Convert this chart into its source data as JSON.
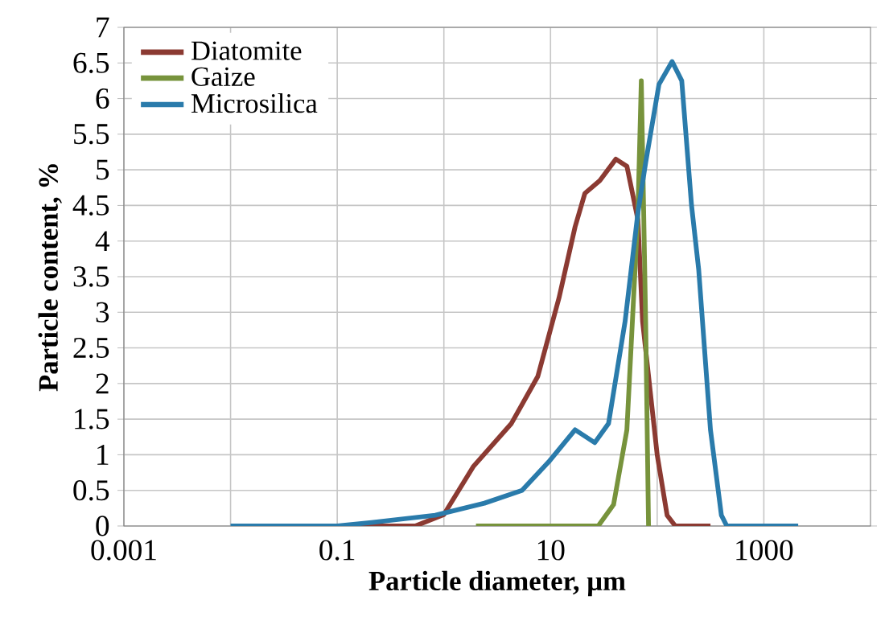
{
  "chart_data": {
    "type": "line",
    "xlabel": "Particle diameter, µm",
    "ylabel": "Particle content, %",
    "log": "x",
    "grid": true,
    "legend": "top left",
    "marker": "none",
    "line_style": "solid",
    "xlim": [
      0.001,
      10000
    ],
    "ylim": [
      0,
      7
    ],
    "xticks": [
      {
        "value": 0.001,
        "label": "0.001"
      },
      {
        "value": 0.01,
        "label": null
      },
      {
        "value": 0.1,
        "label": "0.1"
      },
      {
        "value": 1,
        "label": null
      },
      {
        "value": 10,
        "label": "10"
      },
      {
        "value": 100,
        "label": null
      },
      {
        "value": 1000,
        "label": "1000"
      }
    ],
    "yticks": [
      0,
      0.5,
      1,
      1.5,
      2,
      2.5,
      3,
      3.5,
      4,
      4.5,
      5,
      5.5,
      6,
      6.5,
      7
    ],
    "series": [
      {
        "name": "Diatomite",
        "color": "#8b3a32",
        "x": [
          0.1,
          0.54,
          1.0,
          1.9,
          4.3,
          7.6,
          12,
          17,
          21,
          29,
          41,
          52,
          66,
          73,
          100,
          124,
          148,
          316
        ],
        "values": [
          0,
          0,
          0.16,
          0.84,
          1.44,
          2.1,
          3.2,
          4.2,
          4.67,
          4.85,
          5.15,
          5.05,
          4.3,
          2.87,
          1.0,
          0.15,
          0,
          0
        ]
      },
      {
        "name": "Gaize",
        "color": "#77933c",
        "x": [
          2,
          28,
          39,
          52,
          66,
          71,
          78,
          83
        ],
        "values": [
          0,
          0,
          0.3,
          1.35,
          4.4,
          6.25,
          2.87,
          0
        ]
      },
      {
        "name": "Microsilica",
        "color": "#2a7bab",
        "x": [
          0.01,
          0.1,
          0.21,
          0.83,
          2.4,
          5.4,
          9.6,
          17,
          26,
          35,
          50,
          66,
          78,
          104,
          138,
          170,
          210,
          245,
          316,
          400,
          450,
          2100
        ],
        "values": [
          0,
          0,
          0.05,
          0.15,
          0.32,
          0.5,
          0.9,
          1.35,
          1.17,
          1.44,
          2.87,
          4.4,
          5.1,
          6.2,
          6.52,
          6.25,
          4.5,
          3.6,
          1.35,
          0.15,
          0,
          0
        ]
      }
    ]
  }
}
